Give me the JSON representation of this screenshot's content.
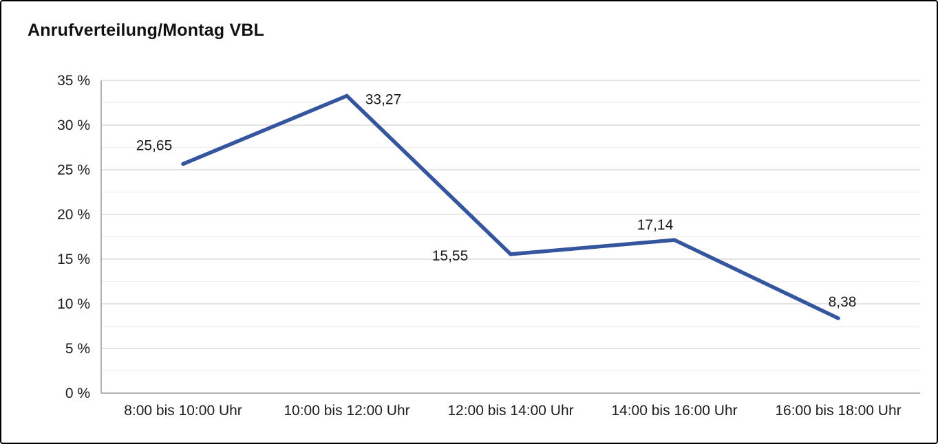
{
  "chart_data": {
    "type": "line",
    "title": "Anrufverteilung/Montag VBL",
    "categories": [
      "8:00 bis 10:00 Uhr",
      "10:00 bis 12:00 Uhr",
      "12:00 bis 14:00 Uhr",
      "14:00 bis 16:00 Uhr",
      "16:00 bis 18:00 Uhr"
    ],
    "values": [
      25.65,
      33.27,
      15.55,
      17.14,
      8.38
    ],
    "value_labels": [
      "25,65",
      "33,27",
      "15,55",
      "17,14",
      "8,38"
    ],
    "y_ticks": [
      {
        "value": 35,
        "label": "35 %"
      },
      {
        "value": 30,
        "label": "30 %"
      },
      {
        "value": 25,
        "label": "25 %"
      },
      {
        "value": 20,
        "label": "20 %"
      },
      {
        "value": 15,
        "label": "15 %"
      },
      {
        "value": 10,
        "label": "10 %"
      },
      {
        "value": 5,
        "label": "5 %"
      },
      {
        "value": 0,
        "label": "0 %"
      }
    ],
    "ylim": [
      0,
      35
    ],
    "xlabel": "",
    "ylabel": "",
    "legend": "none",
    "grid": "horizontal",
    "line_color": "#35569E"
  }
}
